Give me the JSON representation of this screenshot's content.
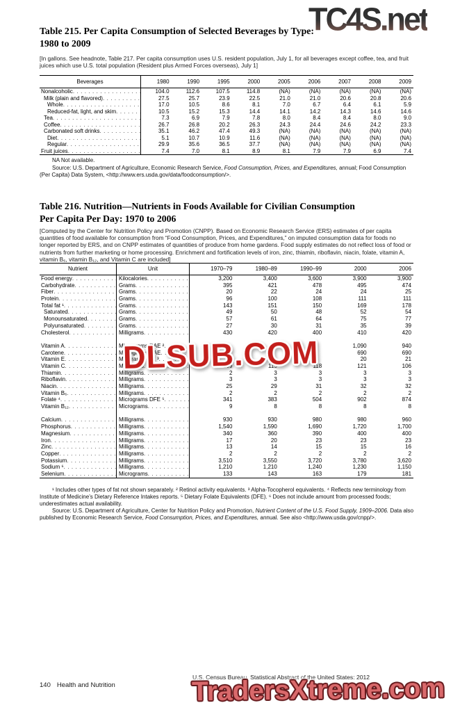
{
  "watermarks": {
    "top_right": "TC4S.net",
    "middle": "DLSUB.COM",
    "bottom": "TradersXtreme.com"
  },
  "table215": {
    "title1": "Table 215. Per Capita Consumption of Selected Beverages by Type:",
    "title2": "1980 to 2009",
    "headnote": "[In gallons. See headnote, Table 217. Per capita consumption uses U.S. resident population, July 1, for all beverages except coffee, tea, and fruit juices which use U.S. total population (Resident plus Armed Forces overseas), July 1]",
    "columns": [
      "Beverages",
      "1980",
      "1990",
      "1995",
      "2000",
      "2005",
      "2006",
      "2007",
      "2008",
      "2009"
    ],
    "rows": [
      {
        "label": "Nonalcoholic",
        "indent": 0,
        "values": [
          "104.0",
          "112.6",
          "107.5",
          "114.8",
          "(NA)",
          "(NA)",
          "(NA)",
          "(NA)",
          "(NA)"
        ]
      },
      {
        "label": "Milk (plain and flavored)",
        "indent": 1,
        "values": [
          "27.5",
          "25.7",
          "23.9",
          "22.5",
          "21.0",
          "21.0",
          "20.6",
          "20.8",
          "20.6"
        ]
      },
      {
        "label": "Whole",
        "indent": 2,
        "values": [
          "17.0",
          "10.5",
          "8.6",
          "8.1",
          "7.0",
          "6.7",
          "6.4",
          "6.1",
          "5.9"
        ]
      },
      {
        "label": "Reduced-fat, light, and skim",
        "indent": 2,
        "values": [
          "10.5",
          "15.2",
          "15.3",
          "14.4",
          "14.1",
          "14.2",
          "14.3",
          "14.6",
          "14.6"
        ]
      },
      {
        "label": "Tea",
        "indent": 1,
        "values": [
          "7.3",
          "6.9",
          "7.9",
          "7.8",
          "8.0",
          "8.4",
          "8.4",
          "8.0",
          "9.0"
        ]
      },
      {
        "label": "Coffee",
        "indent": 1,
        "values": [
          "26.7",
          "26.8",
          "20.2",
          "26.3",
          "24.3",
          "24.4",
          "24.6",
          "24.2",
          "23.3"
        ]
      },
      {
        "label": "Carbonated soft drinks",
        "indent": 1,
        "values": [
          "35.1",
          "46.2",
          "47.4",
          "49.3",
          "(NA)",
          "(NA)",
          "(NA)",
          "(NA)",
          "(NA)"
        ]
      },
      {
        "label": "Diet",
        "indent": 2,
        "values": [
          "5.1",
          "10.7",
          "10.9",
          "11.6",
          "(NA)",
          "(NA)",
          "(NA)",
          "(NA)",
          "(NA)"
        ]
      },
      {
        "label": "Regular",
        "indent": 2,
        "values": [
          "29.9",
          "35.6",
          "36.5",
          "37.7",
          "(NA)",
          "(NA)",
          "(NA)",
          "(NA)",
          "(NA)"
        ]
      },
      {
        "label": "Fruit juices",
        "indent": 0,
        "values": [
          "7.4",
          "7.0",
          "8.1",
          "8.9",
          "8.1",
          "7.9",
          "7.9",
          "6.9",
          "7.4"
        ]
      }
    ],
    "na_note": "NA Not available.",
    "source_parts": [
      {
        "text": "Source: U.S. Department of Agriculture, Economic Research Service, "
      },
      {
        "text": "Food Consumption, Prices, and Expenditures,",
        "italic": true
      },
      {
        "text": " annual; Food Consumption (Per Capita) Data System, <http://www.ers.usda.gov/data/foodconsumption/>."
      }
    ]
  },
  "table216": {
    "title1": "Table 216. Nutrition—Nutrients in Foods Available for Civilian Consumption",
    "title2": "Per Capita Per Day: 1970 to 2006",
    "headnote": "[Computed by the Center for Nutrition Policy and Promotion (CNPP). Based on Economic Research Service (ERS) estimates of per capita quantities of food available for consumption from “Food Consumption, Prices, and Expenditures,” on imputed consumption data for foods no longer reported by ERS, and on CNPP estimates of quantities of produce from home gardens. Food supply estimates do not reflect loss of food or nutrients from further marketing or home processing. Enrichment and fortification levels of iron, zinc, thiamin, riboflavin, niacin, folate, vitamin A, vitamin B₆, vitamin B₁₂, and Vitamin C are included]",
    "columns": [
      "Nutrient",
      "Unit",
      "1970–79",
      "1980–89",
      "1990–99",
      "2000",
      "2006"
    ],
    "rows": [
      {
        "label": "Food energy",
        "unit": "Kilocalories",
        "values": [
          "3,200",
          "3,400",
          "3,600",
          "3,900",
          "3,900"
        ]
      },
      {
        "label": "Carbohydrate",
        "unit": "Grams",
        "values": [
          "395",
          "421",
          "478",
          "495",
          "474"
        ]
      },
      {
        "label": "Fiber",
        "unit": "Grams",
        "values": [
          "20",
          "22",
          "24",
          "24",
          "25"
        ]
      },
      {
        "label": "Protein",
        "unit": "Grams",
        "values": [
          "96",
          "100",
          "108",
          "111",
          "111"
        ]
      },
      {
        "label": "Total fat ¹",
        "unit": "Grams",
        "values": [
          "143",
          "151",
          "150",
          "169",
          "178"
        ]
      },
      {
        "label": "Saturated",
        "indent": 1,
        "unit": "Grams",
        "values": [
          "49",
          "50",
          "48",
          "52",
          "54"
        ]
      },
      {
        "label": "Monounsaturated",
        "indent": 1,
        "unit": "Grams",
        "values": [
          "57",
          "61",
          "64",
          "75",
          "77"
        ]
      },
      {
        "label": "Polyunsaturated",
        "indent": 1,
        "unit": "Grams",
        "values": [
          "27",
          "30",
          "31",
          "35",
          "39"
        ]
      },
      {
        "label": "Cholesterol",
        "unit": "Milligrams",
        "values": [
          "430",
          "420",
          "400",
          "410",
          "420"
        ]
      },
      {
        "spacer": true
      },
      {
        "label": "Vitamin A",
        "unit": "Micrograms RAE ²",
        "values": [
          "",
          "",
          "",
          "1,090",
          "940"
        ]
      },
      {
        "label": "Carotene",
        "unit": "Micrograms RAE",
        "values": [
          "",
          "",
          "",
          "690",
          "690"
        ]
      },
      {
        "label": "Vitamin E",
        "unit": "Milligrams ATE ³",
        "values": [
          "",
          "",
          "",
          "20",
          "21"
        ]
      },
      {
        "label": "Vitamin C",
        "unit": "Milligrams",
        "values": [
          "109",
          "115",
          "118",
          "121",
          "106"
        ]
      },
      {
        "label": "Thiamin",
        "unit": "Milligrams",
        "values": [
          "2",
          "3",
          "3",
          "3",
          "3"
        ]
      },
      {
        "label": "Riboflavin",
        "unit": "Milligrams",
        "values": [
          "3",
          "3",
          "3",
          "3",
          "3"
        ]
      },
      {
        "label": "Niacin",
        "unit": "Milligrams",
        "values": [
          "25",
          "29",
          "31",
          "32",
          "32"
        ]
      },
      {
        "label": "Vitamin B₆",
        "unit": "Milligrams",
        "values": [
          "2",
          "2",
          "2",
          "2",
          "2"
        ]
      },
      {
        "label": "Folate ⁴",
        "unit": "Micrograms DFE ⁵",
        "values": [
          "341",
          "383",
          "504",
          "902",
          "874"
        ]
      },
      {
        "label": "Vitamin B₁₂",
        "unit": "Micrograms",
        "values": [
          "9",
          "8",
          "8",
          "8",
          "8"
        ]
      },
      {
        "spacer": true
      },
      {
        "label": "Calcium",
        "unit": "Milligrams",
        "values": [
          "930",
          "930",
          "980",
          "980",
          "960"
        ]
      },
      {
        "label": "Phosphorus",
        "unit": "Milligrams",
        "values": [
          "1,540",
          "1,590",
          "1,690",
          "1,720",
          "1,700"
        ]
      },
      {
        "label": "Magnesium",
        "unit": "Milligrams",
        "values": [
          "340",
          "360",
          "390",
          "400",
          "400"
        ]
      },
      {
        "label": "Iron",
        "unit": "Milligrams",
        "values": [
          "17",
          "20",
          "23",
          "23",
          "23"
        ]
      },
      {
        "label": "Zinc",
        "unit": "Milligrams",
        "values": [
          "13",
          "14",
          "15",
          "15",
          "16"
        ]
      },
      {
        "label": "Copper",
        "unit": "Milligrams",
        "values": [
          "2",
          "2",
          "2",
          "2",
          "2"
        ]
      },
      {
        "label": "Potassium",
        "unit": "Milligrams",
        "values": [
          "3,510",
          "3,550",
          "3,720",
          "3,780",
          "3,620"
        ]
      },
      {
        "label": "Sodium ⁶",
        "unit": "Milligrams",
        "values": [
          "1,210",
          "1,210",
          "1,240",
          "1,230",
          "1,150"
        ]
      },
      {
        "label": "Selenium",
        "unit": "Micrograms",
        "values": [
          "133",
          "143",
          "163",
          "179",
          "181"
        ]
      }
    ],
    "footnotes": "¹ Includes other types of fat not shown separately. ² Retinol activity equivalents. ³ Alpha-Tocopherol equivalents. ⁴ Reflects new terminology from Institute of Medicine’s Dietary Reference Intakes reports. ⁵ Dietary Folate Equivalents (DFE). ⁶ Does not include amount from processed foods; underestimates actual availability.",
    "source_parts": [
      {
        "text": "Source: U.S. Department of Agriculture, Center for Nutrition Policy and Promotion, "
      },
      {
        "text": "Nutrient Content of the U.S. Food Supply, 1909–2006.",
        "italic": true
      },
      {
        "text": " Data also published by Economic Research Service, "
      },
      {
        "text": "Food Consumption, Prices, and Expenditures,",
        "italic": true
      },
      {
        "text": " annual. See also <http://www.usda.gov/cnpp/>."
      }
    ]
  },
  "footer": {
    "page_number": "140",
    "section": "Health and Nutrition",
    "attribution": "U.S. Census Bureau, Statistical Abstract of the United States: 2012"
  }
}
